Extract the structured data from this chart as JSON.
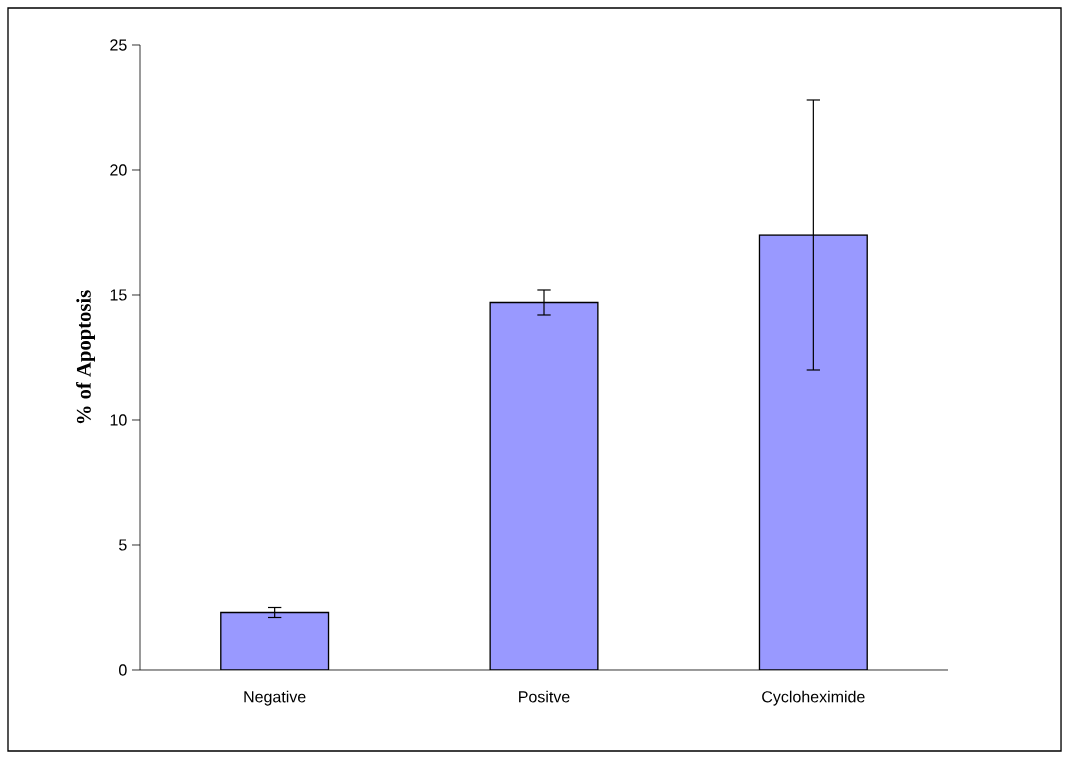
{
  "chart_data": {
    "type": "bar",
    "ylabel": "% of Apoptosis",
    "categories": [
      "Negative",
      "Positve",
      "Cycloheximide"
    ],
    "values": [
      2.3,
      14.7,
      17.4
    ],
    "errors": [
      0.2,
      0.5,
      5.4
    ],
    "color": "#9999ff",
    "ylim": [
      0,
      25
    ],
    "yticks": [
      0,
      5,
      10,
      15,
      20,
      25
    ],
    "grid": false
  }
}
